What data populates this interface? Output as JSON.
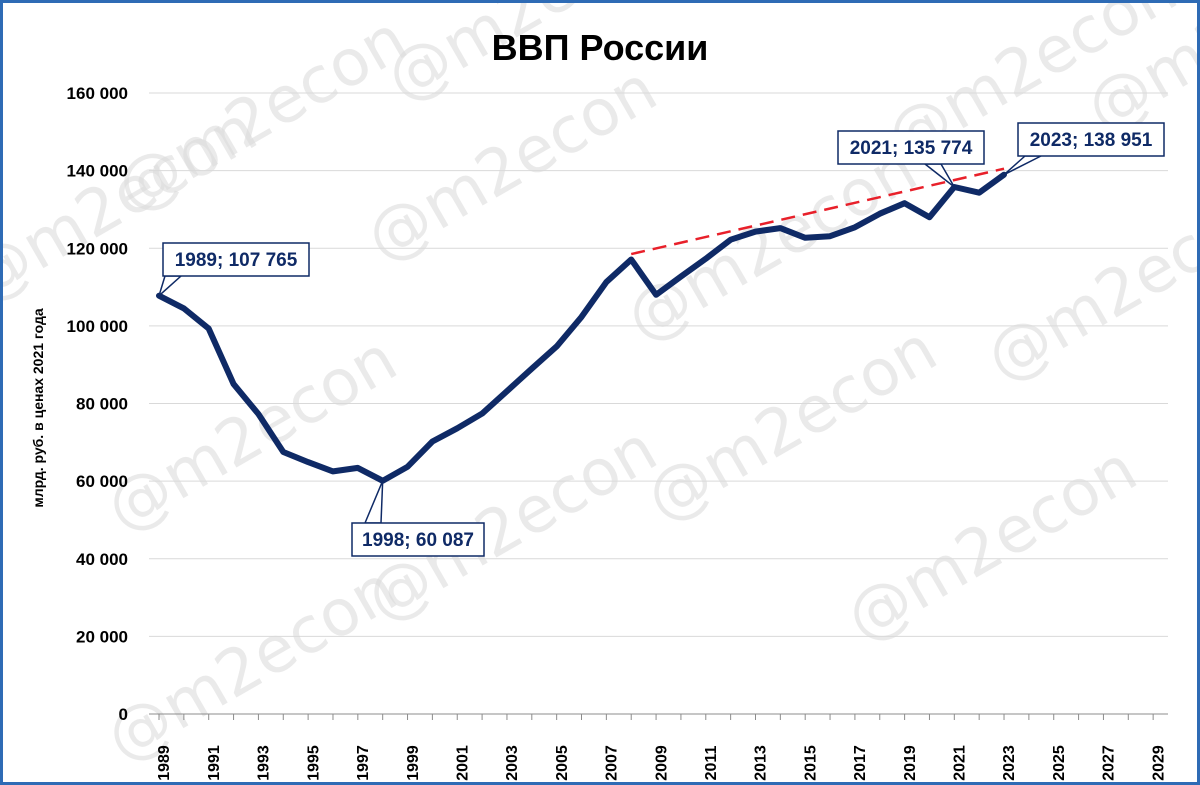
{
  "watermark": "@m2econ",
  "colors": {
    "line": "#0f2a66",
    "trend": "#e8202a",
    "grid": "#d9d9d9",
    "border": "#2e6bb5",
    "callout_text": "#0f2a66"
  },
  "chart_data": {
    "type": "line",
    "title": "ВВП России",
    "xlabel": "",
    "ylabel": "млрд. руб. в ценах 2021 года",
    "xlim": [
      1989,
      2030
    ],
    "ylim": [
      0,
      160000
    ],
    "grid": true,
    "x_tick_labels": [
      "1989",
      "1991",
      "1993",
      "1995",
      "1997",
      "1999",
      "2001",
      "2003",
      "2005",
      "2007",
      "2009",
      "2011",
      "2013",
      "2015",
      "2017",
      "2019",
      "2021",
      "2023",
      "2025",
      "2027",
      "2029"
    ],
    "y_tick_labels": [
      "0",
      "20 000",
      "40 000",
      "60 000",
      "80 000",
      "100 000",
      "120 000",
      "140 000",
      "160 000"
    ],
    "y_ticks": [
      0,
      20000,
      40000,
      60000,
      80000,
      100000,
      120000,
      140000,
      160000
    ],
    "series": [
      {
        "name": "",
        "x": [
          1989,
          1990,
          1991,
          1992,
          1993,
          1994,
          1995,
          1996,
          1997,
          1998,
          1999,
          2000,
          2001,
          2002,
          2003,
          2004,
          2005,
          2006,
          2007,
          2008,
          2009,
          2010,
          2011,
          2012,
          2013,
          2014,
          2015,
          2016,
          2017,
          2018,
          2019,
          2020,
          2021,
          2022,
          2023
        ],
        "y": [
          107765,
          104500,
          99300,
          85000,
          77300,
          67500,
          64900,
          62500,
          63400,
          60087,
          63700,
          70200,
          73600,
          77400,
          83200,
          89000,
          94700,
          102300,
          111300,
          117100,
          108000,
          112700,
          117300,
          122200,
          124300,
          125200,
          122700,
          123100,
          125400,
          128900,
          131600,
          128000,
          135774,
          134300,
          138951
        ]
      }
    ],
    "trend_line": {
      "x": [
        2008,
        2023
      ],
      "y": [
        118500,
        140500
      ]
    },
    "annotations": [
      {
        "label": "1989; 107 765",
        "x": 1989,
        "y": 107765
      },
      {
        "label": "1998; 60 087",
        "x": 1998,
        "y": 60087
      },
      {
        "label": "2021; 135 774",
        "x": 2021,
        "y": 135774
      },
      {
        "label": "2023; 138 951",
        "x": 2023,
        "y": 138951
      }
    ]
  }
}
